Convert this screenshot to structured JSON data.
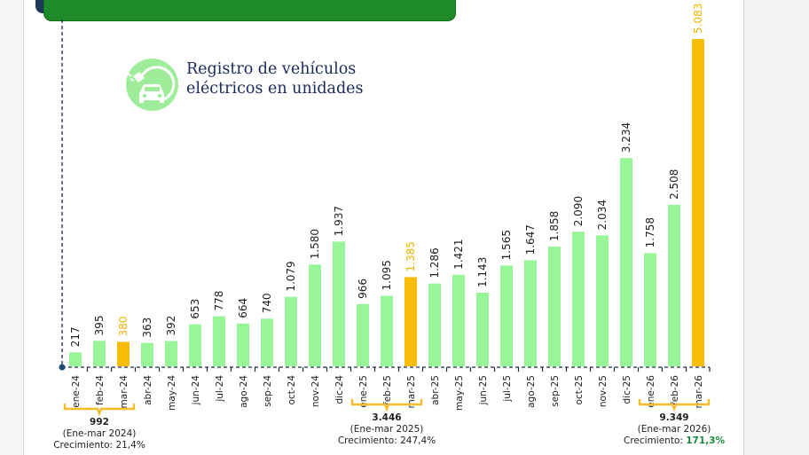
{
  "banner": {
    "text": ""
  },
  "title": {
    "line1": "Registro de vehículos",
    "line2": "eléctricos  en unidades",
    "icon": "electric-car-plug-icon"
  },
  "colors": {
    "bar": "#98f598",
    "highlight": "#f7bd09",
    "banner": "#1e8a28",
    "growth_positive": "#1a8a3a"
  },
  "chart_data": {
    "type": "bar",
    "title": "Registro de vehículos eléctricos en unidades",
    "xlabel": "",
    "ylabel": "",
    "ylim": [
      0,
      5083
    ],
    "grid": false,
    "categories": [
      "ene-24",
      "feb-24",
      "mar-24",
      "abr-24",
      "may-24",
      "jun-24",
      "jul-24",
      "ago-24",
      "sep-24",
      "oct-24",
      "nov-24",
      "dic-24",
      "ene-25",
      "feb-25",
      "mar-25",
      "abr-25",
      "may-25",
      "jun-25",
      "jul-25",
      "ago-25",
      "sep-25",
      "oct-25",
      "nov-25",
      "dic-25",
      "ene-26",
      "feb-26",
      "mar-26"
    ],
    "values": [
      217,
      395,
      380,
      363,
      392,
      653,
      778,
      664,
      740,
      1079,
      1580,
      1937,
      966,
      1095,
      1385,
      1286,
      1421,
      1143,
      1565,
      1647,
      1858,
      2090,
      2034,
      3234,
      1758,
      2508,
      5083
    ],
    "value_labels": [
      "217",
      "395",
      "380",
      "363",
      "392",
      "653",
      "778",
      "664",
      "740",
      "1.079",
      "1.580",
      "1.937",
      "966",
      "1.095",
      "1.385",
      "1.286",
      "1.421",
      "1.143",
      "1.565",
      "1.647",
      "1.858",
      "2.090",
      "2.034",
      "3.234",
      "1.758",
      "2.508",
      "5.083"
    ],
    "highlighted": [
      "mar-24",
      "mar-25",
      "mar-26"
    ],
    "annotations": [
      {
        "span": [
          "ene-24",
          "mar-24"
        ],
        "total": "992",
        "period": "(Ene-mar 2024)",
        "growth_label": "Crecimiento: ",
        "growth": "21,4%",
        "growth_emphasis": false
      },
      {
        "span": [
          "ene-25",
          "mar-25"
        ],
        "total": "3.446",
        "period": "(Ene-mar 2025)",
        "growth_label": "Crecimiento: ",
        "growth": "247,4%",
        "growth_emphasis": false
      },
      {
        "span": [
          "ene-26",
          "mar-26"
        ],
        "total": "9.349",
        "period": "(Ene-mar 2026)",
        "growth_label": "Crecimiento: ",
        "growth": "171,3%",
        "growth_emphasis": true
      }
    ]
  }
}
